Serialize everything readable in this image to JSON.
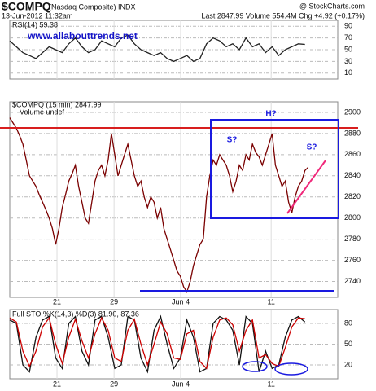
{
  "header": {
    "symbol": "$COMPQ",
    "name": "(Nasdaq Composite) INDX",
    "date": "13-Jun-2012 11:32am",
    "quote": "Last 2847.99 Volume 554.4M Chg +4.92 (+0.17%)",
    "source": "@ StockCharts.com",
    "watermark": "www.allabouttrends.net"
  },
  "chart_data": [
    {
      "type": "line",
      "title": "RSI(14) 59.38",
      "ylim": [
        0,
        100
      ],
      "yticks": [
        10,
        30,
        50,
        70,
        90
      ],
      "xlim": [
        0,
        50
      ],
      "xticks": [
        {
          "value": 7.2,
          "label": ""
        },
        {
          "value": 15.9,
          "label": ""
        },
        {
          "value": 26.05,
          "label": ""
        },
        {
          "value": 39.85,
          "label": ""
        }
      ],
      "series": [
        {
          "name": "RSI(14)",
          "color": "#222222",
          "values": [
            65,
            55,
            45,
            40,
            35,
            45,
            55,
            50,
            45,
            60,
            70,
            55,
            45,
            50,
            65,
            60,
            55,
            70,
            75,
            60,
            50,
            45,
            40,
            45,
            35,
            30,
            35,
            40,
            30,
            35,
            60,
            70,
            65,
            55,
            60,
            50,
            70,
            55,
            60,
            45,
            55,
            40,
            50,
            55,
            60,
            59
          ]
        }
      ]
    },
    {
      "type": "line",
      "title": "$COMPQ (15 min) 2847.99",
      "subtitle": "Volume undef",
      "ylim": [
        2725,
        2910
      ],
      "yticks": [
        2740,
        2760,
        2780,
        2800,
        2820,
        2840,
        2860,
        2880,
        2900
      ],
      "xlim": [
        0,
        100
      ],
      "xticks": [
        {
          "value": 14.4,
          "label": "21"
        },
        {
          "value": 31.8,
          "label": "29"
        },
        {
          "value": 52.1,
          "label": "Jun 4"
        },
        {
          "value": 79.7,
          "label": "11"
        }
      ],
      "annotations": [
        "S?",
        "H?",
        "S?"
      ],
      "series": [
        {
          "name": "$COMPQ",
          "color": "#7a0000",
          "values": [
            2895,
            2890,
            2885,
            2878,
            2870,
            2855,
            2840,
            2835,
            2830,
            2822,
            2815,
            2808,
            2800,
            2790,
            2775,
            2790,
            2810,
            2822,
            2835,
            2842,
            2850,
            2830,
            2815,
            2800,
            2795,
            2815,
            2835,
            2845,
            2850,
            2840,
            2855,
            2880,
            2860,
            2840,
            2850,
            2860,
            2870,
            2855,
            2840,
            2830,
            2835,
            2820,
            2810,
            2820,
            2815,
            2800,
            2810,
            2790,
            2780,
            2770,
            2760,
            2750,
            2745,
            2735,
            2730,
            2740,
            2755,
            2765,
            2775,
            2780,
            2820,
            2840,
            2855,
            2850,
            2860,
            2855,
            2850,
            2840,
            2825,
            2835,
            2850,
            2845,
            2860,
            2855,
            2870,
            2862,
            2858,
            2850,
            2860,
            2870,
            2880,
            2850,
            2840,
            2830,
            2835,
            2815,
            2805,
            2820,
            2830,
            2835,
            2845,
            2848
          ]
        }
      ]
    },
    {
      "type": "line",
      "title": "Full STO %K(14,3) %D(3) 81.90, 87.36",
      "ylim": [
        0,
        100
      ],
      "yticks": [
        20,
        50,
        80
      ],
      "xlim": [
        0,
        50
      ],
      "xticks": [
        {
          "value": 7.2,
          "label": "21"
        },
        {
          "value": 15.9,
          "label": "29"
        },
        {
          "value": 26.05,
          "label": "Jun 4"
        },
        {
          "value": 39.85,
          "label": "11"
        }
      ],
      "series": [
        {
          "name": "%K",
          "color": "#111111",
          "values": [
            85,
            80,
            20,
            10,
            60,
            85,
            90,
            30,
            15,
            80,
            90,
            40,
            20,
            85,
            90,
            60,
            15,
            20,
            90,
            85,
            30,
            10,
            70,
            90,
            50,
            15,
            30,
            85,
            60,
            10,
            15,
            80,
            90,
            85,
            70,
            20,
            90,
            80,
            10,
            40,
            15,
            20,
            60,
            85,
            90,
            82
          ]
        },
        {
          "name": "%D",
          "color": "#cc0000",
          "values": [
            88,
            82,
            40,
            18,
            40,
            75,
            88,
            50,
            22,
            60,
            86,
            55,
            30,
            65,
            88,
            70,
            30,
            25,
            70,
            86,
            50,
            20,
            50,
            82,
            65,
            30,
            28,
            65,
            70,
            25,
            15,
            60,
            85,
            88,
            78,
            40,
            70,
            85,
            30,
            35,
            22,
            18,
            45,
            75,
            88,
            87
          ]
        }
      ]
    }
  ]
}
